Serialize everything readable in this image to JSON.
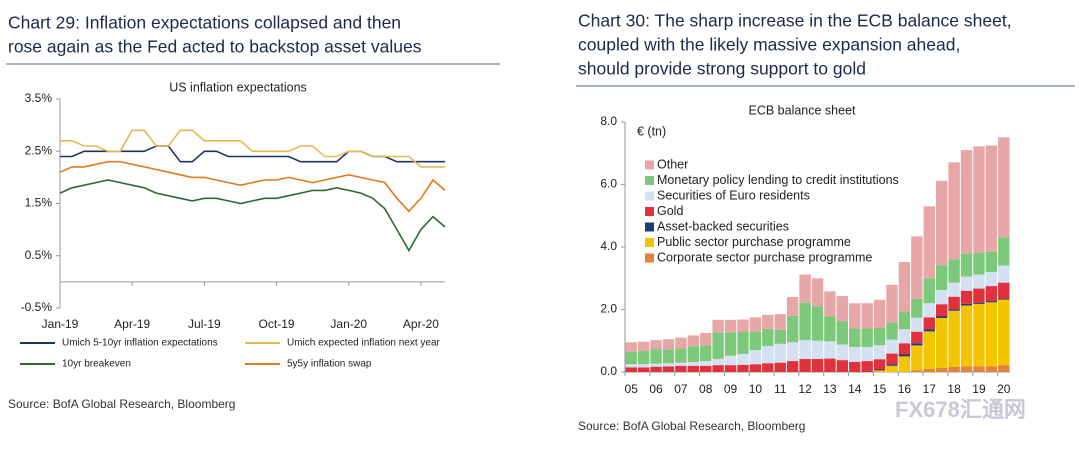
{
  "chart_data": [
    {
      "type": "line",
      "title": [
        "Chart 29: Inflation expectations collapsed and then",
        "rose again as the Fed acted to backstop asset values"
      ],
      "subtitle": "US inflation expectations",
      "categories": [
        "Jan-19",
        null,
        null,
        null,
        null,
        null,
        "Apr-19",
        null,
        null,
        null,
        null,
        null,
        "Jul-19",
        null,
        null,
        null,
        null,
        null,
        "Oct-19",
        null,
        null,
        null,
        null,
        null,
        "Jan-20",
        null,
        null,
        null,
        null,
        null,
        "Apr-20",
        null,
        null
      ],
      "ylim": [
        -0.5,
        3.5
      ],
      "yticks": [
        {
          "value": -0.5,
          "label": "-0.5%"
        },
        {
          "value": 0.5,
          "label": "0.5%"
        },
        {
          "value": 1.5,
          "label": "1.5%"
        },
        {
          "value": 2.5,
          "label": "2.5%"
        },
        {
          "value": 3.5,
          "label": "3.5%"
        }
      ],
      "grid": false,
      "legend": "bottom",
      "series": [
        {
          "name": "Umich 5-10yr inflation expectations",
          "color": "#1f3560",
          "values": [
            2.4,
            2.4,
            2.5,
            2.5,
            2.5,
            2.5,
            2.5,
            2.5,
            2.6,
            2.6,
            2.3,
            2.3,
            2.5,
            2.5,
            2.4,
            2.4,
            2.4,
            2.4,
            2.4,
            2.4,
            2.3,
            2.3,
            2.3,
            2.3,
            2.5,
            2.5,
            2.4,
            2.4,
            2.3,
            2.3,
            2.3,
            2.3,
            2.3
          ]
        },
        {
          "name": "Umich expected inflation next year",
          "color": "#e6b94e",
          "values": [
            2.7,
            2.7,
            2.6,
            2.6,
            2.5,
            2.5,
            2.9,
            2.9,
            2.6,
            2.6,
            2.9,
            2.9,
            2.7,
            2.7,
            2.7,
            2.7,
            2.5,
            2.5,
            2.5,
            2.5,
            2.6,
            2.6,
            2.4,
            2.4,
            2.5,
            2.5,
            2.4,
            2.4,
            2.4,
            2.4,
            2.2,
            2.2,
            2.2
          ]
        },
        {
          "name": "10yr breakeven",
          "color": "#2d6a30",
          "values": [
            1.7,
            1.8,
            1.85,
            1.9,
            1.95,
            1.9,
            1.85,
            1.8,
            1.7,
            1.65,
            1.6,
            1.55,
            1.6,
            1.6,
            1.55,
            1.5,
            1.55,
            1.6,
            1.6,
            1.65,
            1.7,
            1.75,
            1.75,
            1.8,
            1.75,
            1.7,
            1.6,
            1.4,
            1.0,
            0.6,
            1.0,
            1.25,
            1.05
          ]
        },
        {
          "name": "5y5y inflation swap",
          "color": "#e07a1f",
          "values": [
            2.1,
            2.2,
            2.2,
            2.25,
            2.3,
            2.3,
            2.25,
            2.2,
            2.15,
            2.1,
            2.05,
            2.0,
            2.0,
            1.95,
            1.9,
            1.85,
            1.9,
            1.95,
            1.95,
            2.0,
            1.95,
            1.9,
            1.95,
            2.0,
            2.05,
            2.0,
            1.95,
            1.9,
            1.6,
            1.35,
            1.6,
            1.95,
            1.75
          ]
        }
      ],
      "source": "Source: BofA Global Research, Bloomberg"
    },
    {
      "type": "stacked_bar",
      "title": [
        "Chart 30: The sharp increase in the ECB balance sheet,",
        "coupled with the likely massive expansion ahead,",
        "should provide strong support to gold"
      ],
      "subtitle": "ECB balance sheet",
      "ylabel": "€ (tn)",
      "categories": [
        "05",
        null,
        "06",
        null,
        "07",
        null,
        "08",
        null,
        "09",
        null,
        "10",
        null,
        "11",
        null,
        "12",
        null,
        "13",
        null,
        "14",
        null,
        "15",
        null,
        "16",
        null,
        "17",
        null,
        "18",
        null,
        "19",
        null,
        "20"
      ],
      "ylim": [
        0,
        8
      ],
      "yticks": [
        {
          "value": 0,
          "label": "0.0"
        },
        {
          "value": 2,
          "label": "2.0"
        },
        {
          "value": 4,
          "label": "4.0"
        },
        {
          "value": 6,
          "label": "6.0"
        },
        {
          "value": 8,
          "label": "8.0"
        }
      ],
      "grid": false,
      "legend": "top-left",
      "series": [
        {
          "name": "Other",
          "color": "#e8a7a7",
          "values": [
            0.3,
            0.3,
            0.3,
            0.32,
            0.35,
            0.35,
            0.4,
            0.4,
            0.4,
            0.4,
            0.45,
            0.45,
            0.5,
            0.6,
            0.9,
            0.9,
            0.8,
            0.8,
            0.8,
            0.8,
            0.9,
            1.2,
            1.6,
            2.0,
            2.3,
            2.7,
            3.1,
            3.3,
            3.4,
            3.4,
            3.2
          ]
        },
        {
          "name": "Monetary policy lending to credit institutions",
          "color": "#7cc97c",
          "values": [
            0.4,
            0.42,
            0.45,
            0.45,
            0.45,
            0.5,
            0.5,
            0.85,
            0.75,
            0.7,
            0.6,
            0.55,
            0.45,
            0.85,
            1.2,
            1.1,
            0.8,
            0.75,
            0.6,
            0.6,
            0.55,
            0.55,
            0.55,
            0.6,
            0.8,
            0.8,
            0.75,
            0.75,
            0.7,
            0.65,
            0.9
          ]
        },
        {
          "name": "Securities of Euro residents",
          "color": "#d3e1f3",
          "values": [
            0.1,
            0.1,
            0.1,
            0.1,
            0.1,
            0.12,
            0.15,
            0.2,
            0.3,
            0.35,
            0.45,
            0.55,
            0.6,
            0.6,
            0.6,
            0.58,
            0.55,
            0.5,
            0.48,
            0.45,
            0.45,
            0.45,
            0.45,
            0.45,
            0.45,
            0.45,
            0.45,
            0.45,
            0.45,
            0.45,
            0.55
          ]
        },
        {
          "name": "Gold",
          "color": "#e0313c",
          "values": [
            0.15,
            0.15,
            0.17,
            0.18,
            0.2,
            0.2,
            0.2,
            0.22,
            0.22,
            0.23,
            0.25,
            0.28,
            0.3,
            0.35,
            0.42,
            0.42,
            0.43,
            0.38,
            0.32,
            0.34,
            0.33,
            0.34,
            0.36,
            0.37,
            0.38,
            0.38,
            0.4,
            0.42,
            0.45,
            0.48,
            0.5
          ]
        },
        {
          "name": "Asset-backed securities",
          "color": "#1f3b73",
          "values": [
            0,
            0,
            0,
            0,
            0,
            0,
            0,
            0,
            0,
            0,
            0,
            0,
            0,
            0,
            0,
            0,
            0,
            0,
            0,
            0.01,
            0.03,
            0.05,
            0.06,
            0.07,
            0.07,
            0.06,
            0.05,
            0.05,
            0.04,
            0.04,
            0.04
          ]
        },
        {
          "name": "Public sector purchase programme",
          "color": "#f5c400",
          "values": [
            0,
            0,
            0,
            0,
            0,
            0,
            0,
            0,
            0,
            0,
            0,
            0,
            0,
            0,
            0,
            0,
            0,
            0,
            0,
            0,
            0.05,
            0.2,
            0.5,
            0.8,
            1.2,
            1.6,
            1.8,
            1.95,
            2.0,
            2.05,
            2.1
          ]
        },
        {
          "name": "Corporate sector purchase programme",
          "color": "#e3803a",
          "values": [
            0,
            0,
            0,
            0,
            0,
            0,
            0,
            0,
            0,
            0,
            0,
            0,
            0,
            0,
            0,
            0,
            0,
            0,
            0,
            0,
            0,
            0,
            0,
            0.05,
            0.1,
            0.13,
            0.16,
            0.18,
            0.18,
            0.18,
            0.22
          ]
        }
      ],
      "source": "Source: BofA Global Research, Bloomberg"
    }
  ],
  "watermark": "FX678汇通网"
}
